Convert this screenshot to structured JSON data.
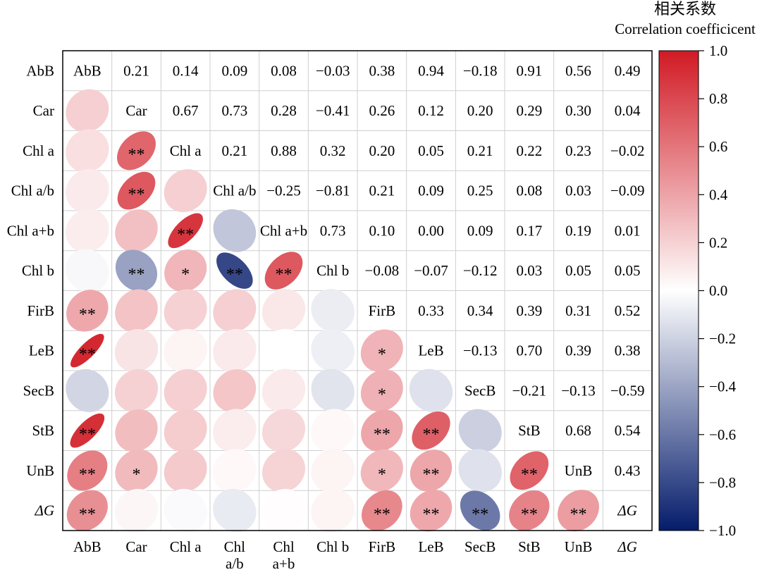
{
  "chart_data": {
    "type": "heatmap",
    "subtype": "correlation-ellipse-matrix",
    "variables": [
      "AbB",
      "Car",
      "Chl a",
      "Chl a/b",
      "Chl a+b",
      "Chl b",
      "FirB",
      "LeB",
      "SecB",
      "StB",
      "UnB",
      "ΔG"
    ],
    "row_labels": [
      "AbB",
      "Car",
      "Chl a",
      "Chl a/b",
      "Chl a+b",
      "Chl b",
      "FirB",
      "LeB",
      "SecB",
      "StB",
      "UnB",
      "ΔG"
    ],
    "column_labels": [
      "AbB",
      "Car",
      "Chl a",
      "Chl\na/b",
      "Chl\na+b",
      "Chl b",
      "FirB",
      "LeB",
      "SecB",
      "StB",
      "UnB",
      "ΔG"
    ],
    "matrix": [
      [
        1,
        0.21,
        0.14,
        0.09,
        0.08,
        -0.03,
        0.38,
        0.94,
        -0.18,
        0.91,
        0.56,
        0.49
      ],
      [
        0.21,
        1,
        0.67,
        0.73,
        0.28,
        -0.41,
        0.26,
        0.12,
        0.2,
        0.29,
        0.3,
        0.04
      ],
      [
        0.14,
        0.67,
        1,
        0.21,
        0.88,
        0.32,
        0.2,
        0.05,
        0.21,
        0.22,
        0.23,
        -0.02
      ],
      [
        0.09,
        0.73,
        0.21,
        1,
        -0.25,
        -0.81,
        0.21,
        0.09,
        0.25,
        0.08,
        0.03,
        -0.09
      ],
      [
        0.08,
        0.28,
        0.88,
        -0.25,
        1,
        0.73,
        0.1,
        0.0,
        0.09,
        0.17,
        0.19,
        0.01
      ],
      [
        -0.03,
        -0.41,
        0.32,
        -0.81,
        0.73,
        1,
        -0.08,
        -0.07,
        -0.12,
        0.03,
        0.05,
        0.05
      ],
      [
        0.38,
        0.26,
        0.2,
        0.21,
        0.1,
        -0.08,
        1,
        0.33,
        0.34,
        0.39,
        0.31,
        0.52
      ],
      [
        0.94,
        0.12,
        0.05,
        0.09,
        0.0,
        -0.07,
        0.33,
        1,
        -0.13,
        0.7,
        0.39,
        0.38
      ],
      [
        -0.18,
        0.2,
        0.21,
        0.25,
        0.09,
        -0.12,
        0.34,
        -0.13,
        1,
        -0.21,
        -0.13,
        -0.59
      ],
      [
        0.91,
        0.29,
        0.22,
        0.08,
        0.17,
        0.03,
        0.39,
        0.7,
        -0.21,
        1,
        0.68,
        0.54
      ],
      [
        0.56,
        0.3,
        0.23,
        0.03,
        0.19,
        0.05,
        0.31,
        0.39,
        -0.13,
        0.68,
        1,
        0.43
      ],
      [
        0.49,
        0.04,
        -0.02,
        -0.09,
        0.01,
        0.05,
        0.52,
        0.38,
        -0.59,
        0.54,
        0.43,
        1
      ]
    ],
    "value_labels": [
      [
        "",
        "0.21",
        "0.14",
        "0.09",
        "0.08",
        "−0.03",
        "0.38",
        "0.94",
        "−0.18",
        "0.91",
        "0.56",
        "0.49"
      ],
      [
        "",
        "",
        "0.67",
        "0.73",
        "0.28",
        "−0.41",
        "0.26",
        "0.12",
        "0.20",
        "0.29",
        "0.30",
        "0.04"
      ],
      [
        "",
        "",
        "",
        "0.21",
        "0.88",
        "0.32",
        "0.20",
        "0.05",
        "0.21",
        "0.22",
        "0.23",
        "−0.02"
      ],
      [
        "",
        "",
        "",
        "",
        "−0.25",
        "−0.81",
        "0.21",
        "0.09",
        "0.25",
        "0.08",
        "0.03",
        "−0.09"
      ],
      [
        "",
        "",
        "",
        "",
        "",
        "0.73",
        "0.10",
        "0.00",
        "0.09",
        "0.17",
        "0.19",
        "0.01"
      ],
      [
        "",
        "",
        "",
        "",
        "",
        "",
        "−0.08",
        "−0.07",
        "−0.12",
        "0.03",
        "0.05",
        "0.05"
      ],
      [
        "",
        "",
        "",
        "",
        "",
        "",
        "",
        "0.33",
        "0.34",
        "0.39",
        "0.31",
        "0.52"
      ],
      [
        "",
        "",
        "",
        "",
        "",
        "",
        "",
        "",
        "−0.13",
        "0.70",
        "0.39",
        "0.38"
      ],
      [
        "",
        "",
        "",
        "",
        "",
        "",
        "",
        "",
        "",
        "−0.21",
        "−0.13",
        "−0.59"
      ],
      [
        "",
        "",
        "",
        "",
        "",
        "",
        "",
        "",
        "",
        "",
        "0.68",
        "0.54"
      ],
      [
        "",
        "",
        "",
        "",
        "",
        "",
        "",
        "",
        "",
        "",
        "",
        "0.43"
      ],
      [
        "",
        "",
        "",
        "",
        "",
        "",
        "",
        "",
        "",
        "",
        "",
        ""
      ]
    ],
    "significance": [
      [
        "",
        "",
        "",
        "",
        "",
        "",
        "",
        "",
        "",
        "",
        "",
        ""
      ],
      [
        "",
        "",
        "",
        "",
        "",
        "",
        "",
        "",
        "",
        "",
        "",
        ""
      ],
      [
        "",
        "**",
        "",
        "",
        "",
        "",
        "",
        "",
        "",
        "",
        "",
        ""
      ],
      [
        "",
        "**",
        "",
        "",
        "",
        "",
        "",
        "",
        "",
        "",
        "",
        ""
      ],
      [
        "",
        "",
        "**",
        "",
        "",
        "",
        "",
        "",
        "",
        "",
        "",
        ""
      ],
      [
        "",
        "**",
        "*",
        "**",
        "**",
        "",
        "",
        "",
        "",
        "",
        "",
        ""
      ],
      [
        "**",
        "",
        "",
        "",
        "",
        "",
        "",
        "",
        "",
        "",
        "",
        ""
      ],
      [
        "**",
        "",
        "",
        "",
        "",
        "",
        "*",
        "",
        "",
        "",
        "",
        ""
      ],
      [
        "",
        "",
        "",
        "",
        "",
        "",
        "*",
        "",
        "",
        "",
        "",
        ""
      ],
      [
        "**",
        "",
        "",
        "",
        "",
        "",
        "**",
        "**",
        "",
        "",
        "",
        ""
      ],
      [
        "**",
        "*",
        "",
        "",
        "",
        "",
        "*",
        "**",
        "",
        "**",
        "",
        ""
      ],
      [
        "**",
        "",
        "",
        "",
        "",
        "",
        "**",
        "**",
        "**",
        "**",
        "**",
        ""
      ]
    ],
    "layout": {
      "lower_triangle": "ellipses",
      "diagonal": "variable names",
      "upper_triangle": "coefficients"
    },
    "legend": {
      "title_zh": "相关系数",
      "title_en": "Correlation coefficicent",
      "range": [
        -1.0,
        1.0
      ],
      "ticks": [
        "1.0",
        "0.8",
        "0.6",
        "0.4",
        "0.2",
        "0.0",
        "−0.2",
        "−0.4",
        "−0.6",
        "−0.8",
        "−1.0"
      ],
      "tick_values": [
        1.0,
        0.8,
        0.6,
        0.4,
        0.2,
        0.0,
        -0.2,
        -0.4,
        -0.6,
        -0.8,
        -1.0
      ],
      "placement": "right",
      "colors": {
        "negative_end": "#051c6b",
        "neutral": "#ffffff",
        "positive_end": "#d11a24"
      }
    },
    "grid": true
  }
}
